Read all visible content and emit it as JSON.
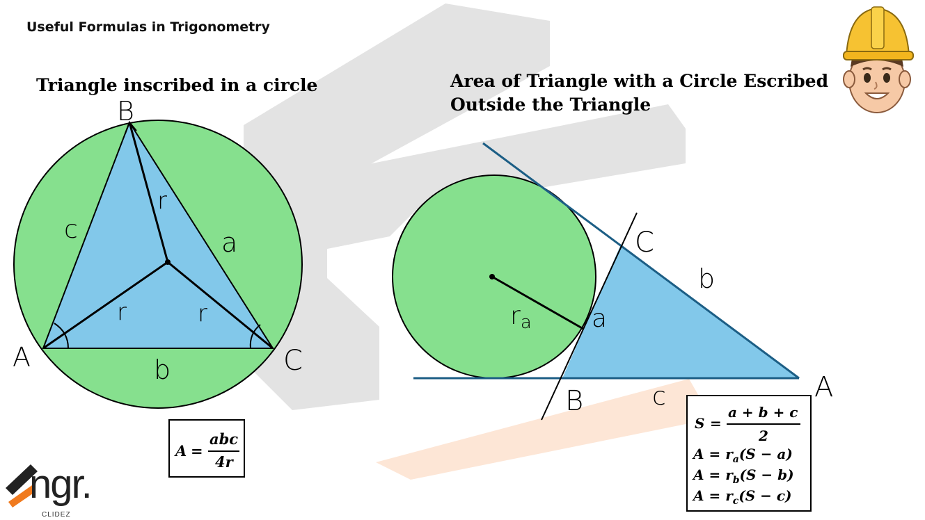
{
  "page_title": "Useful Formulas in Trigonometry",
  "left": {
    "title": "Triangle inscribed in a circle",
    "labels": {
      "vertex_b": "B",
      "vertex_a": "A",
      "vertex_c": "C",
      "side_c": "c",
      "side_a": "a",
      "side_b": "b",
      "radius": "r"
    },
    "formula": {
      "lhs": "A",
      "eq": "=",
      "num": "abc",
      "den": "4r"
    }
  },
  "right": {
    "title_line1": "Area of Triangle with a Circle Escribed",
    "title_line2": "Outside the Triangle",
    "labels": {
      "vertex_c": "C",
      "vertex_a": "A",
      "vertex_b": "B",
      "side_b": "b",
      "side_a": "a",
      "side_c": "c",
      "radius_r": "r",
      "radius_sub": "a"
    },
    "formulas": {
      "s_lhs": "S",
      "s_eq": "=",
      "s_num": "a + b + c",
      "s_den": "2",
      "rows": [
        {
          "lhs": "A = r",
          "sub": "a",
          "rest": "(S − a)"
        },
        {
          "lhs": "A = r",
          "sub": "b",
          "rest": "(S − b)"
        },
        {
          "lhs": "A = r",
          "sub": "c",
          "rest": "(S − c)"
        }
      ]
    }
  },
  "logo": {
    "main": "ngr.",
    "sub": "CLIDEZ"
  },
  "colors": {
    "green": "#86E08E",
    "blue": "#82C8EA",
    "line_blue": "#1C5E85",
    "watermark_gray": "#E3E3E3",
    "watermark_orange": "#FDE6D6",
    "logo_orange": "#F07A1E"
  }
}
